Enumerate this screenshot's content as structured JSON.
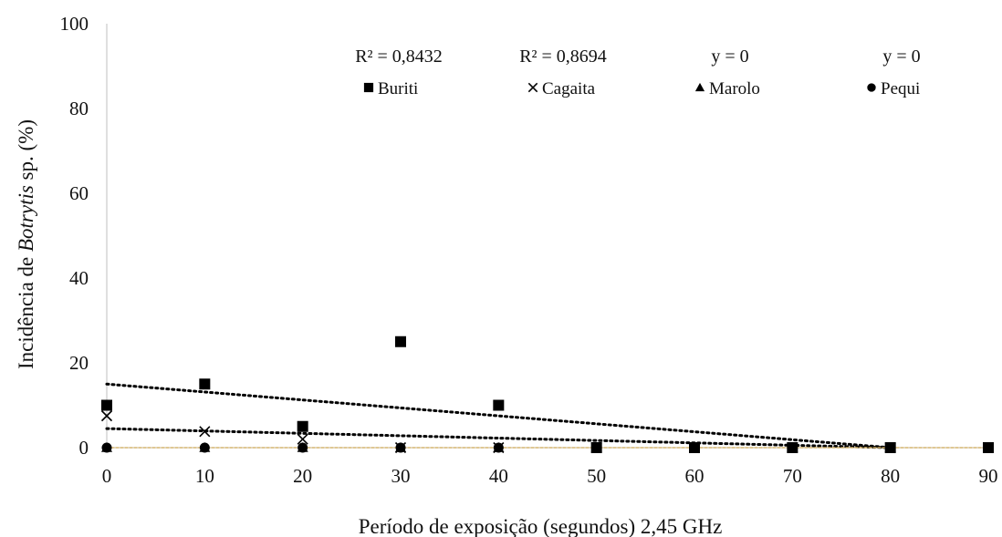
{
  "chart_data": {
    "type": "scatter",
    "xlabel": "Período de exposição (segundos) 2,45 GHz",
    "ylabel_prefix": "Incidência de ",
    "ylabel_italic": "Botrytis",
    "ylabel_suffix": " sp. (%)",
    "xlim": [
      0,
      90
    ],
    "ylim": [
      0,
      100
    ],
    "x_ticks": [
      "0",
      "10",
      "20",
      "30",
      "40",
      "50",
      "60",
      "70",
      "80",
      "90"
    ],
    "y_ticks": [
      "0",
      "20",
      "40",
      "60",
      "80",
      "100"
    ],
    "x_tick_values": [
      0,
      10,
      20,
      30,
      40,
      50,
      60,
      70,
      80,
      90
    ],
    "y_tick_values": [
      0,
      20,
      40,
      60,
      80,
      100
    ],
    "grid": false,
    "legend_position": "top",
    "colors": {
      "markers": "#000000",
      "flat_trend": "#d4b26a",
      "axis": "#bfbfbf"
    },
    "series": [
      {
        "name": "Buriti",
        "marker": "square",
        "equation": "R² = 0,8432",
        "x": [
          0,
          10,
          20,
          30,
          40,
          50,
          60,
          70,
          80,
          90
        ],
        "y": [
          10,
          15,
          5,
          25,
          10,
          0,
          0,
          0,
          0,
          0
        ],
        "trend": [
          [
            0,
            15
          ],
          [
            80,
            0
          ]
        ]
      },
      {
        "name": "Cagaita",
        "marker": "x",
        "equation": "R² = 0,8694",
        "x": [
          0,
          10,
          20,
          30,
          40,
          50,
          60,
          70,
          80,
          90
        ],
        "y": [
          7.5,
          3.8,
          2,
          0,
          0,
          0,
          0,
          0,
          0,
          0
        ],
        "trend": [
          [
            0,
            4.5
          ],
          [
            80,
            0
          ]
        ]
      },
      {
        "name": "Marolo",
        "marker": "triangle",
        "equation": "y = 0",
        "x": [
          0,
          10,
          20,
          30,
          40,
          50,
          60,
          70,
          80,
          90
        ],
        "y": [
          0,
          0,
          0,
          0,
          0,
          0,
          0,
          0,
          0,
          0
        ],
        "trend": [
          [
            0,
            0
          ],
          [
            90,
            0
          ]
        ]
      },
      {
        "name": "Pequi",
        "marker": "circle",
        "equation": "y = 0",
        "x": [
          0,
          10,
          20,
          30,
          40,
          50,
          60,
          70,
          80,
          90
        ],
        "y": [
          0,
          0,
          0,
          0,
          0,
          0,
          0,
          0,
          0,
          0
        ],
        "trend": [
          [
            0,
            0
          ],
          [
            90,
            0
          ]
        ]
      }
    ]
  }
}
